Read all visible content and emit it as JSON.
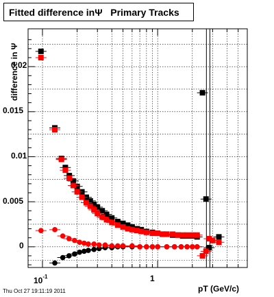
{
  "title": "Fitted difference inΨ   Primary Tracks",
  "xlabel": "pT (GeV/c)",
  "ylabel": "difference in Ψ",
  "timestamp": "Thu Oct 27 19:11:19 2011",
  "yticks": [
    "0.02",
    "0.015",
    "0.01",
    "0.005",
    "0"
  ],
  "xticks": {
    "t1_base": "10",
    "t1_exp": "-1",
    "t2": "1"
  },
  "colors": {
    "black_series": "#000000",
    "red_series": "#ff0000",
    "grid": "#000000"
  },
  "chart_data": {
    "type": "scatter",
    "xscale": "log",
    "xlim": [
      0.075,
      6.0
    ],
    "ylim": [
      -0.0023,
      0.0242
    ],
    "grid": true,
    "vertical_line_at": 2.8,
    "series": [
      {
        "color": "#000000",
        "x": [
          0.097,
          0.128,
          0.146,
          0.158,
          0.171,
          0.185,
          0.2,
          0.22,
          0.24,
          0.26,
          0.28,
          0.3,
          0.33,
          0.36,
          0.4,
          0.45,
          0.5,
          0.55,
          0.6,
          0.66,
          0.72,
          0.8,
          0.9,
          1.0,
          1.1,
          1.2,
          1.35,
          1.5,
          1.65,
          1.8,
          2.0,
          2.2,
          2.45,
          2.63,
          2.8,
          3.0,
          3.4
        ],
        "y": [
          0.0217,
          0.0132,
          0.0098,
          0.0088,
          0.0079,
          0.0073,
          0.0067,
          0.0061,
          0.0055,
          0.0051,
          0.0047,
          0.0044,
          0.004,
          0.0036,
          0.0032,
          0.0028,
          0.0026,
          0.0024,
          0.0022,
          0.002,
          0.0019,
          0.0017,
          0.0016,
          0.0015,
          0.0014,
          0.0014,
          0.0013,
          0.0013,
          0.0012,
          0.0012,
          0.0012,
          0.0011,
          0.0171,
          0.0053,
          -0.0001,
          0.0007,
          0.0011
        ]
      },
      {
        "color": "#000000",
        "x": [
          0.128,
          0.15,
          0.17,
          0.19,
          0.21,
          0.23,
          0.25,
          0.28,
          0.31,
          0.35,
          0.4,
          0.45,
          0.5,
          0.6,
          0.7,
          0.8,
          0.9,
          1.0,
          1.2,
          1.4,
          1.6,
          1.8,
          2.0,
          2.2
        ],
        "y": [
          -0.0018,
          -0.0012,
          -0.001,
          -0.0008,
          -0.0006,
          -0.0005,
          -0.0004,
          -0.0003,
          -0.0002,
          -0.0001,
          -0.0001,
          0.0,
          0.0,
          0.0,
          0.0,
          0.0,
          0.0,
          0.0,
          0.0,
          0.0,
          0.0,
          0.0,
          0.0,
          0.0
        ]
      },
      {
        "color": "#ff0000",
        "x": [
          0.097,
          0.128,
          0.146,
          0.158,
          0.171,
          0.185,
          0.2,
          0.22,
          0.24,
          0.26,
          0.28,
          0.3,
          0.33,
          0.36,
          0.4,
          0.45,
          0.5,
          0.55,
          0.6,
          0.66,
          0.72,
          0.8,
          0.9,
          1.0,
          1.1,
          1.2,
          1.35,
          1.5,
          1.65,
          1.8,
          2.0,
          2.2,
          2.45,
          2.63,
          2.8,
          3.0,
          3.4
        ],
        "y": [
          0.021,
          0.013,
          0.0097,
          0.0085,
          0.0076,
          0.0068,
          0.0061,
          0.0055,
          0.0049,
          0.0045,
          0.0041,
          0.0037,
          0.0033,
          0.003,
          0.0027,
          0.0024,
          0.0022,
          0.002,
          0.0019,
          0.0018,
          0.0017,
          0.0016,
          0.0015,
          0.0015,
          0.0014,
          0.0014,
          0.0014,
          0.0013,
          0.0013,
          0.0013,
          0.0013,
          0.0013,
          -0.001,
          -0.0005,
          0.0009,
          0.0007,
          0.0005
        ]
      },
      {
        "color": "#ff0000",
        "x": [
          0.097,
          0.128,
          0.15,
          0.17,
          0.19,
          0.21,
          0.23,
          0.25,
          0.28,
          0.31,
          0.35,
          0.4,
          0.45,
          0.5,
          0.6,
          0.7,
          0.8,
          0.9,
          1.0,
          1.2,
          1.4,
          1.6,
          1.8,
          2.0,
          2.2
        ],
        "y": [
          0.0018,
          0.0019,
          0.0012,
          0.0009,
          0.0007,
          0.0005,
          0.0004,
          0.0003,
          0.0003,
          0.0002,
          0.0002,
          0.0001,
          0.0001,
          0.0001,
          0.0001,
          0.0,
          0.0,
          0.0,
          0.0,
          0.0,
          0.0,
          0.0,
          0.0,
          0.0,
          0.0
        ]
      }
    ]
  }
}
